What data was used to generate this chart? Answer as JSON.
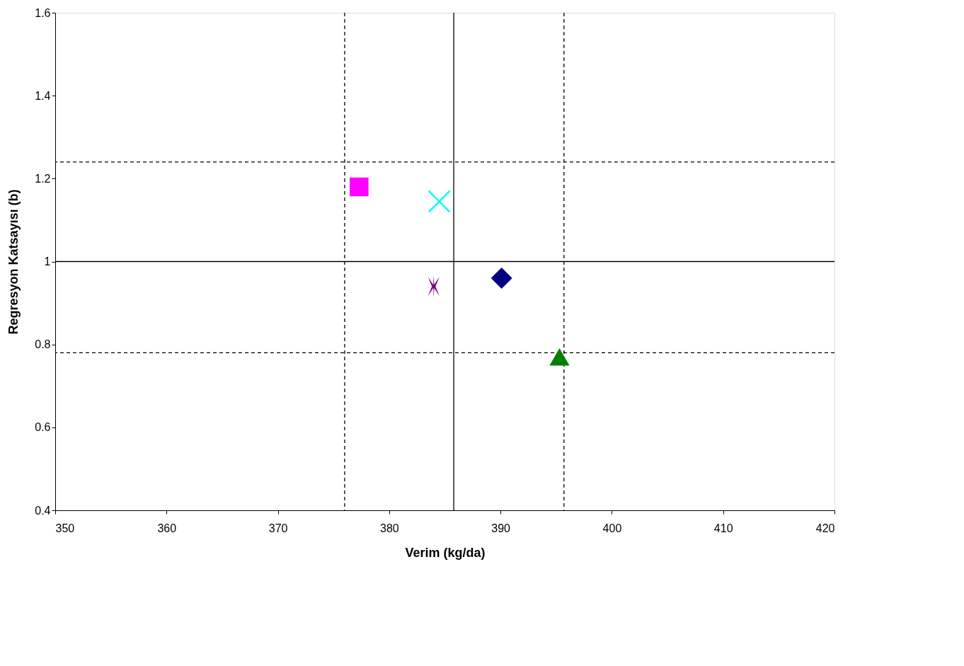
{
  "chart_data": {
    "type": "scatter",
    "xlabel": "Verim (kg/da)",
    "ylabel": "Regresyon Katsayısı (b)",
    "xlim": [
      350,
      420
    ],
    "xticks": [
      350,
      360,
      370,
      380,
      390,
      400,
      410,
      420
    ],
    "ylim": [
      0.4,
      1.6
    ],
    "yticks": [
      0.4,
      0.6,
      0.8,
      1,
      1.2,
      1.4,
      1.6
    ],
    "grid": false,
    "legend": false,
    "series": [
      {
        "color": "#ff00ff",
        "marker": "square",
        "x": [
          377.3
        ],
        "values": [
          1.18
        ]
      },
      {
        "color": "#00ffff",
        "marker": "cross",
        "x": [
          384.5
        ],
        "values": [
          1.145
        ]
      },
      {
        "color": "#800080",
        "marker": "cross",
        "x": [
          384.0
        ],
        "values": [
          0.94
        ]
      },
      {
        "color": "#000080",
        "marker": "diamond",
        "x": [
          390.1
        ],
        "values": [
          0.96
        ]
      },
      {
        "color": "#008000",
        "marker": "triangle",
        "x": [
          395.3
        ],
        "values": [
          0.77
        ]
      }
    ],
    "ref_lines": [
      {
        "axis": "x",
        "value": 385.8,
        "line_style": "solid",
        "color": "#000000"
      },
      {
        "axis": "x",
        "value": 376.0,
        "line_style": "dashed",
        "color": "#000000"
      },
      {
        "axis": "x",
        "value": 395.7,
        "line_style": "dashed",
        "color": "#000000"
      },
      {
        "axis": "y",
        "value": 1.0,
        "line_style": "solid",
        "color": "#000000"
      },
      {
        "axis": "y",
        "value": 1.24,
        "line_style": "dashed",
        "color": "#000000"
      },
      {
        "axis": "y",
        "value": 0.78,
        "line_style": "dashed",
        "color": "#000000"
      }
    ]
  }
}
